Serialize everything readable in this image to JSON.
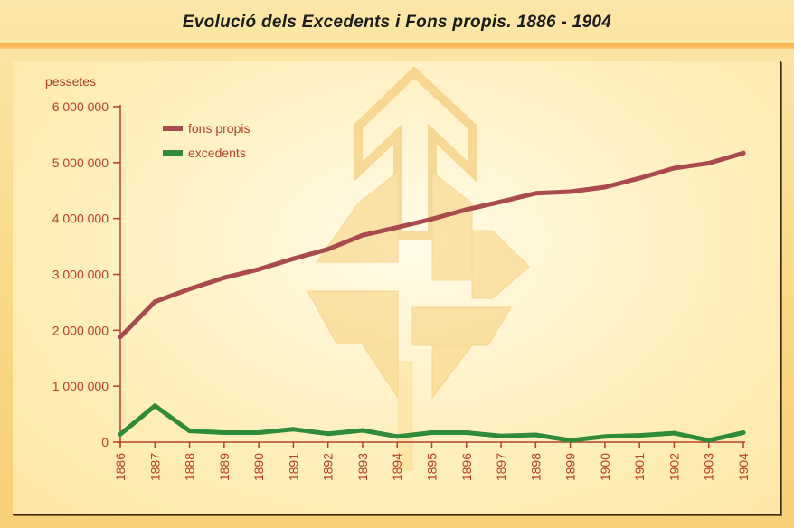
{
  "title": "Evolució dels Excedents i Fons propis.  1886 - 1904",
  "chart_data": {
    "type": "line",
    "title": "Evolució dels Excedents i Fons propis.  1886 - 1904",
    "ylabel": "pessetes",
    "xlabel": "",
    "ylim": [
      0,
      6000000
    ],
    "y_ticks": [
      "0",
      "1 000 000",
      "2 000 000",
      "3 000 000",
      "4 000 000",
      "5 000 000",
      "6 000 000"
    ],
    "categories": [
      "1886",
      "1887",
      "1888",
      "1889",
      "1890",
      "1891",
      "1892",
      "1893",
      "1894",
      "1895",
      "1896",
      "1897",
      "1898",
      "1899",
      "1900",
      "1901",
      "1902",
      "1903",
      "1904"
    ],
    "series": [
      {
        "name": "fons propis",
        "color": "#a94a4e",
        "values": [
          1880000,
          2510000,
          2740000,
          2940000,
          3090000,
          3280000,
          3450000,
          3700000,
          3840000,
          3990000,
          4160000,
          4300000,
          4450000,
          4480000,
          4560000,
          4720000,
          4900000,
          4990000,
          5170000
        ]
      },
      {
        "name": "excedents",
        "color": "#2e8b3a",
        "values": [
          140000,
          650000,
          200000,
          170000,
          170000,
          230000,
          150000,
          210000,
          100000,
          170000,
          170000,
          110000,
          130000,
          30000,
          100000,
          120000,
          160000,
          30000,
          170000
        ]
      }
    ],
    "legend_position": "top-left",
    "grid": false
  }
}
